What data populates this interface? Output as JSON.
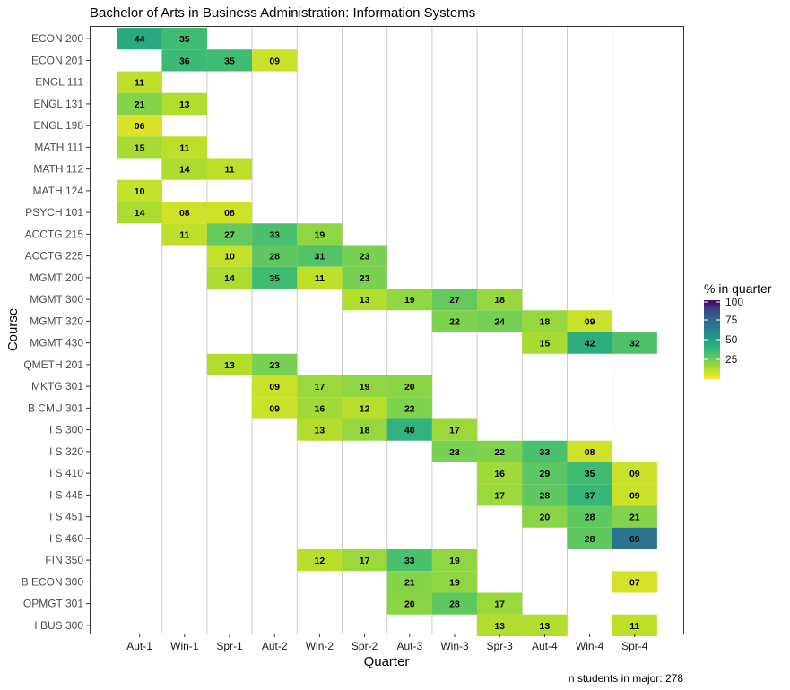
{
  "chart_data": {
    "type": "heatmap",
    "title": "Bachelor of Arts in Business Administration: Information Systems",
    "xlabel": "Quarter",
    "ylabel": "Course",
    "caption": "n students in major: 278",
    "legend": {
      "title": "% in quarter",
      "placement": "right",
      "ticks": [
        100,
        75,
        50,
        25
      ],
      "range": [
        0,
        100
      ]
    },
    "grid": "vertical lines only",
    "x_categories": [
      "Aut-1",
      "Win-1",
      "Spr-1",
      "Aut-2",
      "Win-2",
      "Spr-2",
      "Aut-3",
      "Win-3",
      "Spr-3",
      "Aut-4",
      "Win-4",
      "Spr-4"
    ],
    "y_categories": [
      "ECON 200",
      "ECON 201",
      "ENGL 111",
      "ENGL 131",
      "ENGL 198",
      "MATH 111",
      "MATH 112",
      "MATH 124",
      "PSYCH 101",
      "ACCTG 215",
      "ACCTG 225",
      "MGMT 200",
      "MGMT 300",
      "MGMT 320",
      "MGMT 430",
      "QMETH 201",
      "MKTG 301",
      "B CMU 301",
      "I S 300",
      "I S 320",
      "I S 410",
      "I S 445",
      "I S 451",
      "I S 460",
      "FIN 350",
      "B ECON 300",
      "OPMGT 301",
      "I BUS 300"
    ],
    "values": [
      {
        "course": "ECON 200",
        "cells": [
          {
            "q": "Aut-1",
            "v": 44,
            "label": "44"
          },
          {
            "q": "Win-1",
            "v": 35,
            "label": "35"
          }
        ]
      },
      {
        "course": "ECON 201",
        "cells": [
          {
            "q": "Win-1",
            "v": 36,
            "label": "36"
          },
          {
            "q": "Spr-1",
            "v": 35,
            "label": "35"
          },
          {
            "q": "Aut-2",
            "v": 9,
            "label": "09"
          }
        ]
      },
      {
        "course": "ENGL 111",
        "cells": [
          {
            "q": "Aut-1",
            "v": 11,
            "label": "11"
          }
        ]
      },
      {
        "course": "ENGL 131",
        "cells": [
          {
            "q": "Aut-1",
            "v": 21,
            "label": "21"
          },
          {
            "q": "Win-1",
            "v": 13,
            "label": "13"
          }
        ]
      },
      {
        "course": "ENGL 198",
        "cells": [
          {
            "q": "Aut-1",
            "v": 6,
            "label": "06"
          }
        ]
      },
      {
        "course": "MATH 111",
        "cells": [
          {
            "q": "Aut-1",
            "v": 15,
            "label": "15"
          },
          {
            "q": "Win-1",
            "v": 11,
            "label": "11"
          }
        ]
      },
      {
        "course": "MATH 112",
        "cells": [
          {
            "q": "Win-1",
            "v": 14,
            "label": "14"
          },
          {
            "q": "Spr-1",
            "v": 11,
            "label": "11"
          }
        ]
      },
      {
        "course": "MATH 124",
        "cells": [
          {
            "q": "Aut-1",
            "v": 10,
            "label": "10"
          }
        ]
      },
      {
        "course": "PSYCH 101",
        "cells": [
          {
            "q": "Aut-1",
            "v": 14,
            "label": "14"
          },
          {
            "q": "Win-1",
            "v": 8,
            "label": "08"
          },
          {
            "q": "Spr-1",
            "v": 8,
            "label": "08"
          }
        ]
      },
      {
        "course": "ACCTG 215",
        "cells": [
          {
            "q": "Win-1",
            "v": 11,
            "label": "11"
          },
          {
            "q": "Spr-1",
            "v": 27,
            "label": "27"
          },
          {
            "q": "Aut-2",
            "v": 33,
            "label": "33"
          },
          {
            "q": "Win-2",
            "v": 19,
            "label": "19"
          }
        ]
      },
      {
        "course": "ACCTG 225",
        "cells": [
          {
            "q": "Spr-1",
            "v": 10,
            "label": "10"
          },
          {
            "q": "Aut-2",
            "v": 28,
            "label": "28"
          },
          {
            "q": "Win-2",
            "v": 31,
            "label": "31"
          },
          {
            "q": "Spr-2",
            "v": 23,
            "label": "23"
          }
        ]
      },
      {
        "course": "MGMT 200",
        "cells": [
          {
            "q": "Spr-1",
            "v": 14,
            "label": "14"
          },
          {
            "q": "Aut-2",
            "v": 35,
            "label": "35"
          },
          {
            "q": "Win-2",
            "v": 11,
            "label": "11"
          },
          {
            "q": "Spr-2",
            "v": 23,
            "label": "23"
          }
        ]
      },
      {
        "course": "MGMT 300",
        "cells": [
          {
            "q": "Spr-2",
            "v": 13,
            "label": "13"
          },
          {
            "q": "Aut-3",
            "v": 19,
            "label": "19"
          },
          {
            "q": "Win-3",
            "v": 27,
            "label": "27"
          },
          {
            "q": "Spr-3",
            "v": 18,
            "label": "18"
          }
        ]
      },
      {
        "course": "MGMT 320",
        "cells": [
          {
            "q": "Win-3",
            "v": 22,
            "label": "22"
          },
          {
            "q": "Spr-3",
            "v": 24,
            "label": "24"
          },
          {
            "q": "Aut-4",
            "v": 18,
            "label": "18"
          },
          {
            "q": "Win-4",
            "v": 9,
            "label": "09"
          }
        ]
      },
      {
        "course": "MGMT 430",
        "cells": [
          {
            "q": "Aut-4",
            "v": 15,
            "label": "15"
          },
          {
            "q": "Win-4",
            "v": 42,
            "label": "42"
          },
          {
            "q": "Spr-4",
            "v": 32,
            "label": "32"
          }
        ]
      },
      {
        "course": "QMETH 201",
        "cells": [
          {
            "q": "Spr-1",
            "v": 13,
            "label": "13"
          },
          {
            "q": "Aut-2",
            "v": 23,
            "label": "23"
          }
        ]
      },
      {
        "course": "MKTG 301",
        "cells": [
          {
            "q": "Aut-2",
            "v": 9,
            "label": "09"
          },
          {
            "q": "Win-2",
            "v": 17,
            "label": "17"
          },
          {
            "q": "Spr-2",
            "v": 19,
            "label": "19"
          },
          {
            "q": "Aut-3",
            "v": 20,
            "label": "20"
          }
        ]
      },
      {
        "course": "B CMU 301",
        "cells": [
          {
            "q": "Aut-2",
            "v": 9,
            "label": "09"
          },
          {
            "q": "Win-2",
            "v": 16,
            "label": "16"
          },
          {
            "q": "Spr-2",
            "v": 12,
            "label": "12"
          },
          {
            "q": "Aut-3",
            "v": 22,
            "label": "22"
          }
        ]
      },
      {
        "course": "I S 300",
        "cells": [
          {
            "q": "Win-2",
            "v": 13,
            "label": "13"
          },
          {
            "q": "Spr-2",
            "v": 18,
            "label": "18"
          },
          {
            "q": "Aut-3",
            "v": 40,
            "label": "40"
          },
          {
            "q": "Win-3",
            "v": 17,
            "label": "17"
          }
        ]
      },
      {
        "course": "I S 320",
        "cells": [
          {
            "q": "Win-3",
            "v": 23,
            "label": "23"
          },
          {
            "q": "Spr-3",
            "v": 22,
            "label": "22"
          },
          {
            "q": "Aut-4",
            "v": 33,
            "label": "33"
          },
          {
            "q": "Win-4",
            "v": 8,
            "label": "08"
          }
        ]
      },
      {
        "course": "I S 410",
        "cells": [
          {
            "q": "Spr-3",
            "v": 16,
            "label": "16"
          },
          {
            "q": "Aut-4",
            "v": 29,
            "label": "29"
          },
          {
            "q": "Win-4",
            "v": 35,
            "label": "35"
          },
          {
            "q": "Spr-4",
            "v": 9,
            "label": "09"
          }
        ]
      },
      {
        "course": "I S 445",
        "cells": [
          {
            "q": "Spr-3",
            "v": 17,
            "label": "17"
          },
          {
            "q": "Aut-4",
            "v": 28,
            "label": "28"
          },
          {
            "q": "Win-4",
            "v": 37,
            "label": "37"
          },
          {
            "q": "Spr-4",
            "v": 9,
            "label": "09"
          }
        ]
      },
      {
        "course": "I S 451",
        "cells": [
          {
            "q": "Aut-4",
            "v": 20,
            "label": "20"
          },
          {
            "q": "Win-4",
            "v": 28,
            "label": "28"
          },
          {
            "q": "Spr-4",
            "v": 21,
            "label": "21"
          }
        ]
      },
      {
        "course": "I S 460",
        "cells": [
          {
            "q": "Win-4",
            "v": 28,
            "label": "28"
          },
          {
            "q": "Spr-4",
            "v": 69,
            "label": "69"
          }
        ]
      },
      {
        "course": "FIN 350",
        "cells": [
          {
            "q": "Win-2",
            "v": 12,
            "label": "12"
          },
          {
            "q": "Spr-2",
            "v": 17,
            "label": "17"
          },
          {
            "q": "Aut-3",
            "v": 33,
            "label": "33"
          },
          {
            "q": "Win-3",
            "v": 19,
            "label": "19"
          }
        ]
      },
      {
        "course": "B ECON 300",
        "cells": [
          {
            "q": "Aut-3",
            "v": 21,
            "label": "21"
          },
          {
            "q": "Win-3",
            "v": 19,
            "label": "19"
          },
          {
            "q": "Spr-4",
            "v": 7,
            "label": "07"
          }
        ]
      },
      {
        "course": "OPMGT 301",
        "cells": [
          {
            "q": "Aut-3",
            "v": 20,
            "label": "20"
          },
          {
            "q": "Win-3",
            "v": 28,
            "label": "28"
          },
          {
            "q": "Spr-3",
            "v": 17,
            "label": "17"
          }
        ]
      },
      {
        "course": "I BUS 300",
        "cells": [
          {
            "q": "Spr-3",
            "v": 13,
            "label": "13"
          },
          {
            "q": "Aut-4",
            "v": 13,
            "label": "13"
          },
          {
            "q": "Spr-4",
            "v": 11,
            "label": "11"
          }
        ]
      }
    ],
    "colors": {
      "scale": "viridis (reversed)",
      "low": "#fde725",
      "high": "#440154",
      "grid": "#cccccc",
      "panel_border": "#333333"
    }
  }
}
